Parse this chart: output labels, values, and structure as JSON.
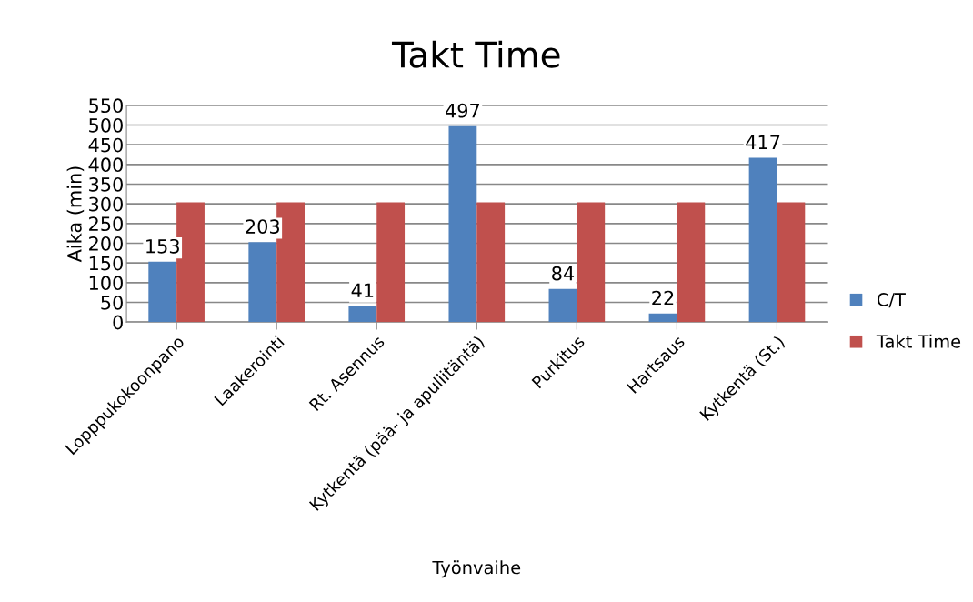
{
  "chart_data": {
    "type": "bar",
    "title": "Takt Time",
    "xlabel": "Työnvaihe",
    "ylabel": "Aika (min)",
    "categories": [
      "Lopppukokoonpano",
      "Laakerointi",
      "Rt. Asennus",
      "Kytkentä (pää- ja apuliitäntä)",
      "Purkitus",
      "Hartsaus",
      "Kytkentä (St.)"
    ],
    "series": [
      {
        "name": "C/T",
        "color": "#4f81bd",
        "values": [
          153,
          203,
          41,
          497,
          84,
          22,
          417
        ],
        "value_labels": [
          "153",
          "203",
          "41",
          "497",
          "84",
          "22",
          "417"
        ]
      },
      {
        "name": "Takt Time",
        "color": "#c0504d",
        "values": [
          304,
          304,
          304,
          304,
          304,
          304,
          304
        ]
      }
    ],
    "ylim": [
      0,
      550
    ],
    "yticks": [
      0,
      50,
      100,
      150,
      200,
      250,
      300,
      350,
      400,
      450,
      500,
      550
    ],
    "grid": "y",
    "legend": "right"
  }
}
